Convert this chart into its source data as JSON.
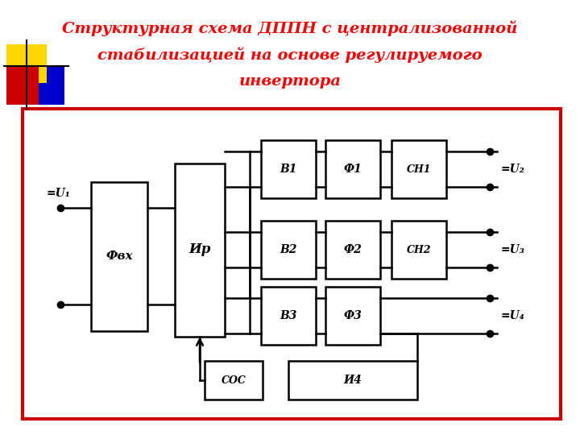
{
  "title_line1": "Структурная схема ДППН с централизованной",
  "title_line2": "стабилизацией на основе регулируемого",
  "title_line3": "инвертора",
  "title_color": "#FF0000",
  "title_fontsize": 14,
  "bg_color": "#FFFFFF",
  "border_color": "#CC0000",
  "lw_wire": 1.8,
  "lw_block": 1.8,
  "lw_border": 3.0,
  "dec_yellow": "#FFD700",
  "dec_blue": "#0000CC",
  "dec_red": "#CC0000"
}
